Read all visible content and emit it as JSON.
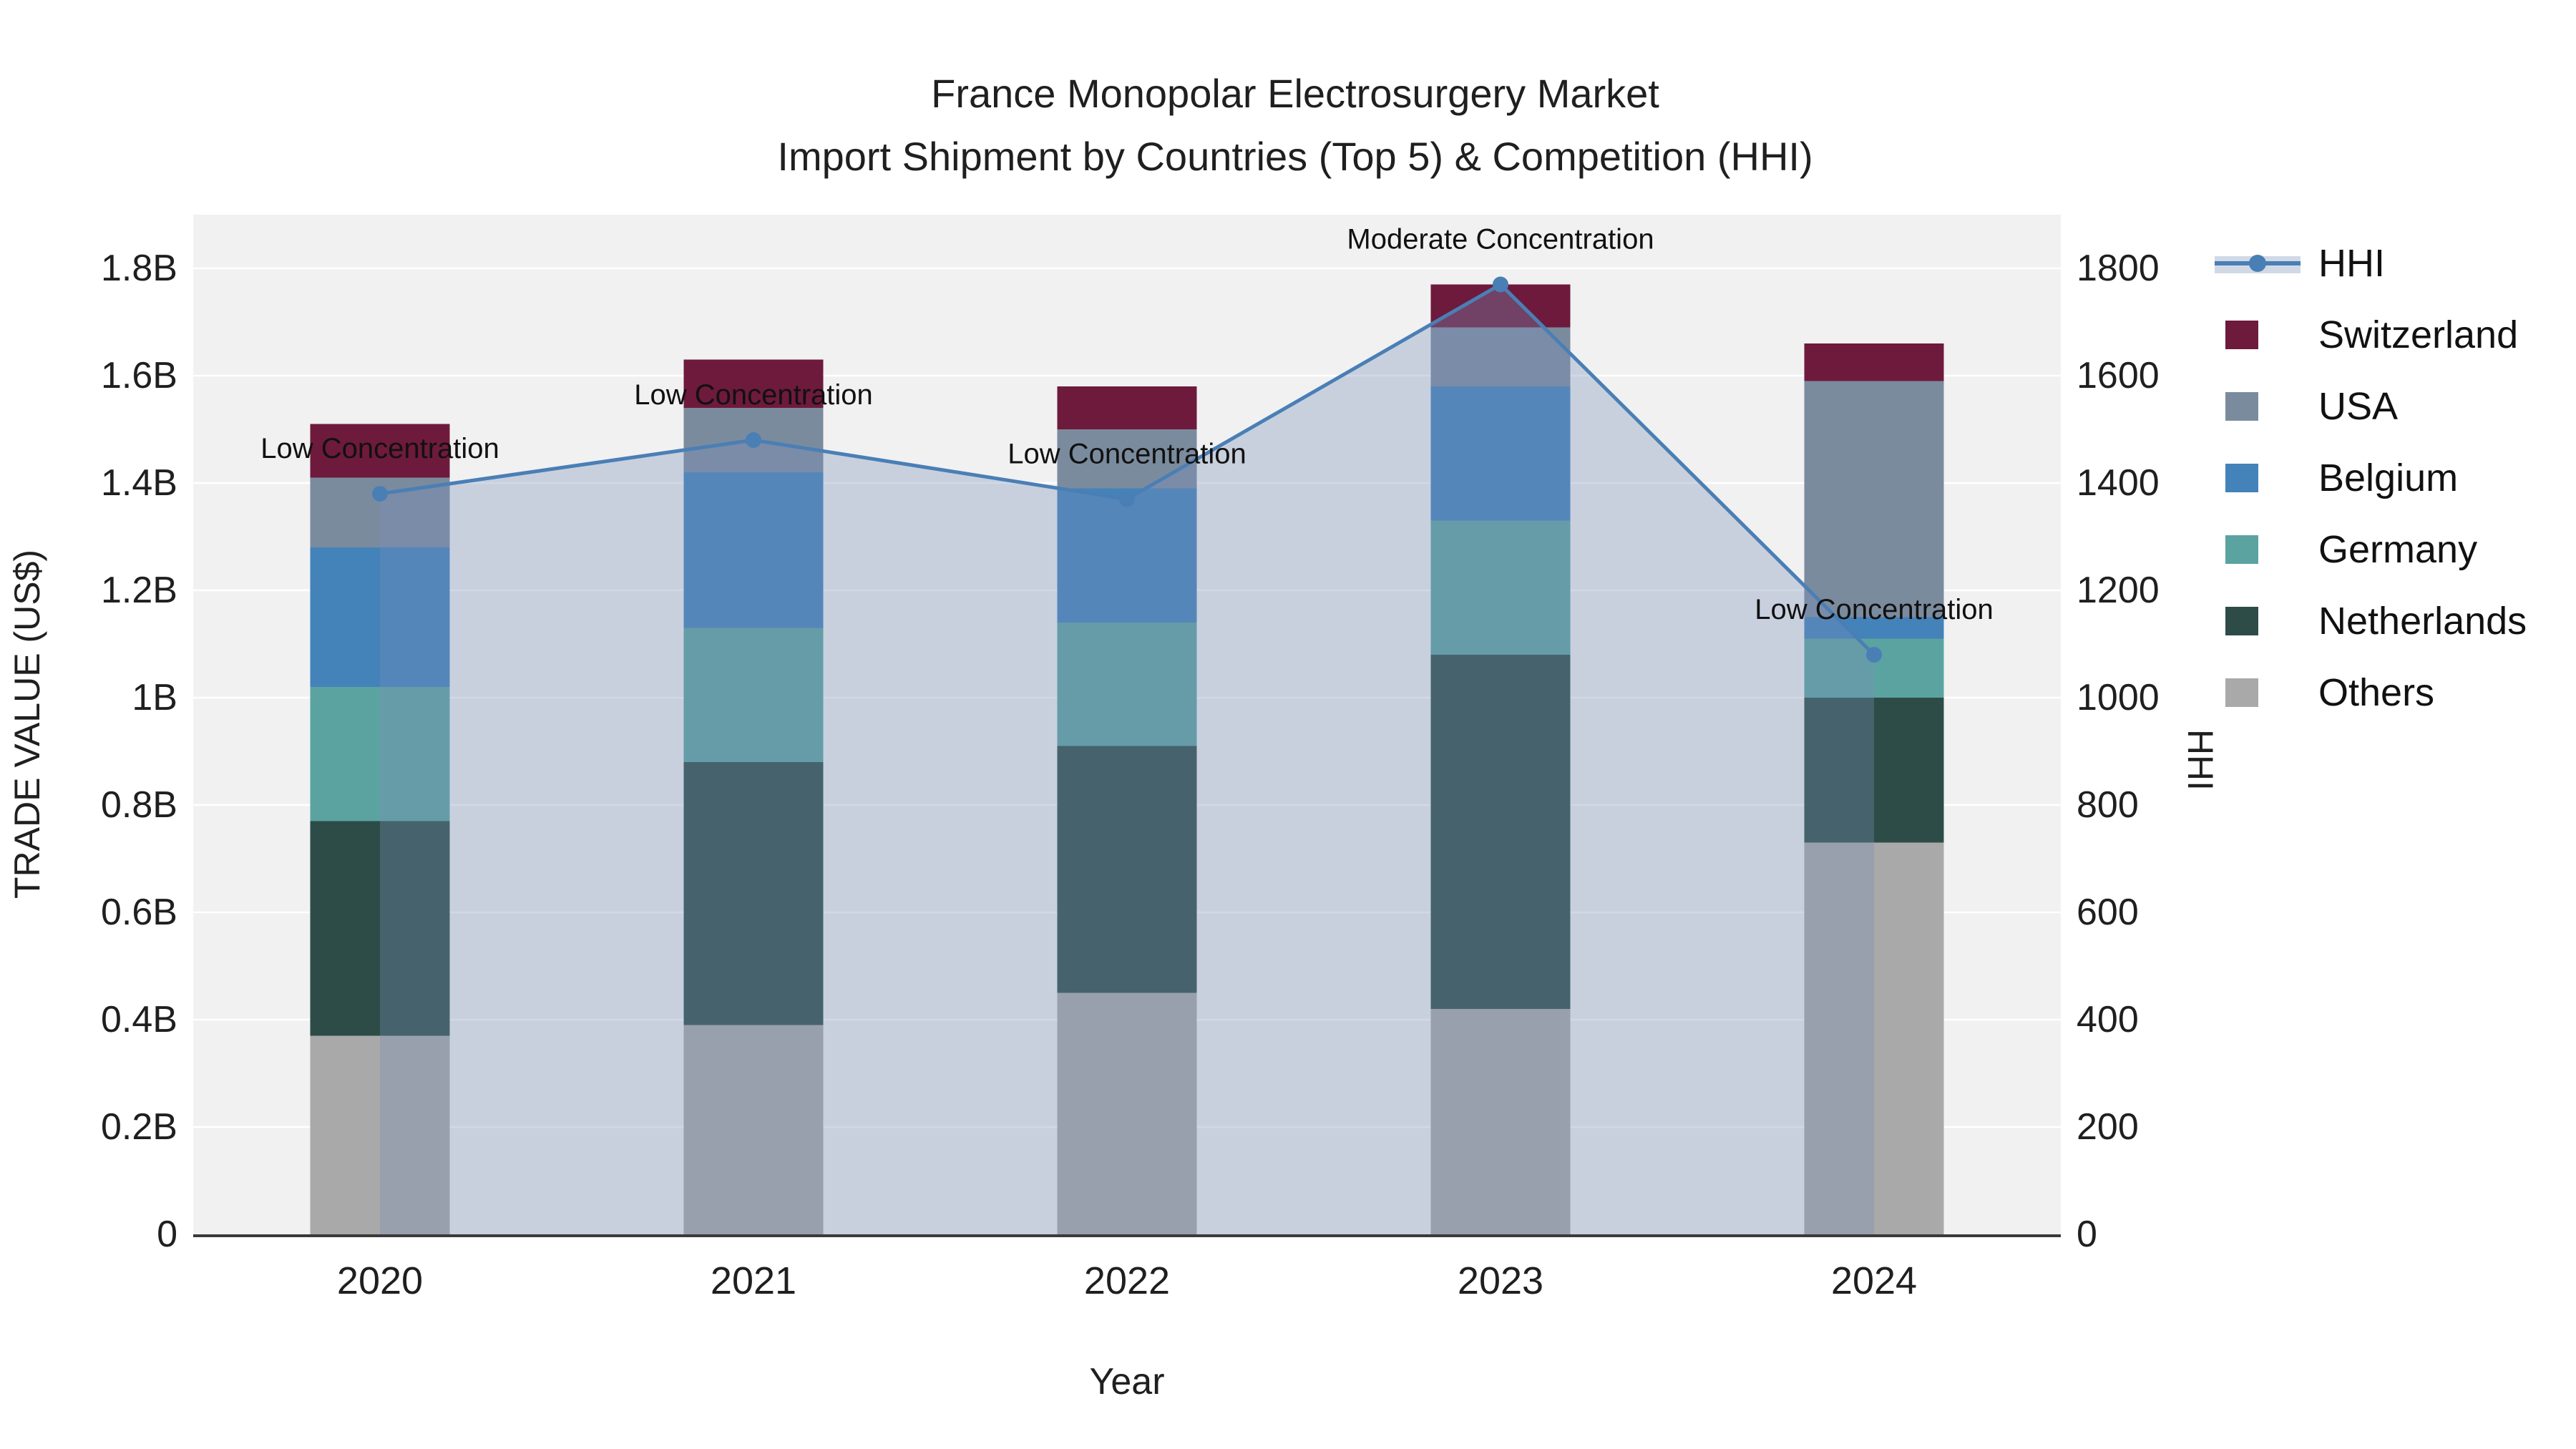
{
  "title": {
    "line1": "France Monopolar Electrosurgery Market",
    "line2": "Import Shipment by Countries (Top 5) & Competition (HHI)"
  },
  "chart_data": {
    "type": "bar",
    "subtype": "stacked-bars-with-line-overlay",
    "categories": [
      "2020",
      "2021",
      "2022",
      "2023",
      "2024"
    ],
    "series": [
      {
        "name": "Others",
        "color": "#a9a9a9",
        "values": [
          0.37,
          0.39,
          0.45,
          0.42,
          0.73
        ]
      },
      {
        "name": "Netherlands",
        "color": "#2d4c47",
        "values": [
          0.4,
          0.49,
          0.46,
          0.66,
          0.27
        ]
      },
      {
        "name": "Germany",
        "color": "#5ba3a0",
        "values": [
          0.25,
          0.25,
          0.23,
          0.25,
          0.11
        ]
      },
      {
        "name": "Belgium",
        "color": "#4482ba",
        "values": [
          0.26,
          0.29,
          0.25,
          0.25,
          0.04
        ]
      },
      {
        "name": "USA",
        "color": "#7b8b9e",
        "values": [
          0.13,
          0.12,
          0.11,
          0.11,
          0.44
        ]
      },
      {
        "name": "Switzerland",
        "color": "#6e1a3c",
        "values": [
          0.1,
          0.09,
          0.08,
          0.08,
          0.07
        ]
      }
    ],
    "line_series": {
      "name": "HHI",
      "color": "#4a7fb5",
      "area_fill": "rgba(120,145,185,0.34)",
      "values": [
        1380,
        1480,
        1370,
        1770,
        1080
      ]
    },
    "annotations": [
      {
        "category_index": 0,
        "label": "Low Concentration"
      },
      {
        "category_index": 1,
        "label": "Low Concentration"
      },
      {
        "category_index": 2,
        "label": "Low Concentration"
      },
      {
        "category_index": 3,
        "label": "Moderate Concentration"
      },
      {
        "category_index": 4,
        "label": "Low Concentration"
      }
    ],
    "xlabel": "Year",
    "ylabel": "TRADE VALUE (US$)",
    "y2label": "HHI",
    "ylim": [
      0,
      1.9
    ],
    "y2lim": [
      0,
      1900
    ],
    "grid": true,
    "legend_position": "right",
    "y_ticks": [
      {
        "v": 0,
        "label": "0"
      },
      {
        "v": 0.2,
        "label": "0.2B"
      },
      {
        "v": 0.4,
        "label": "0.4B"
      },
      {
        "v": 0.6,
        "label": "0.6B"
      },
      {
        "v": 0.8,
        "label": "0.8B"
      },
      {
        "v": 1,
        "label": "1B"
      },
      {
        "v": 1.2,
        "label": "1.2B"
      },
      {
        "v": 1.4,
        "label": "1.4B"
      },
      {
        "v": 1.6,
        "label": "1.6B"
      },
      {
        "v": 1.8,
        "label": "1.8B"
      }
    ],
    "y2_ticks": [
      {
        "v": 0,
        "label": "0"
      },
      {
        "v": 200,
        "label": "200"
      },
      {
        "v": 400,
        "label": "400"
      },
      {
        "v": 600,
        "label": "600"
      },
      {
        "v": 800,
        "label": "800"
      },
      {
        "v": 1000,
        "label": "1000"
      },
      {
        "v": 1200,
        "label": "1200"
      },
      {
        "v": 1400,
        "label": "1400"
      },
      {
        "v": 1600,
        "label": "1600"
      },
      {
        "v": 1800,
        "label": "1800"
      }
    ],
    "legend": [
      {
        "kind": "line",
        "label": "HHI",
        "color": "#4a7fb5"
      },
      {
        "kind": "swatch",
        "label": "Switzerland",
        "color": "#6e1a3c"
      },
      {
        "kind": "swatch",
        "label": "USA",
        "color": "#7b8b9e"
      },
      {
        "kind": "swatch",
        "label": "Belgium",
        "color": "#4482ba"
      },
      {
        "kind": "swatch",
        "label": "Germany",
        "color": "#5ba3a0"
      },
      {
        "kind": "swatch",
        "label": "Netherlands",
        "color": "#2d4c47"
      },
      {
        "kind": "swatch",
        "label": "Others",
        "color": "#a9a9a9"
      }
    ],
    "colors": {
      "plot_background": "#f1f1f2",
      "gridline": "#ffffff",
      "axis_line": "#3a3a3a",
      "text": "#1f1f1f"
    }
  }
}
